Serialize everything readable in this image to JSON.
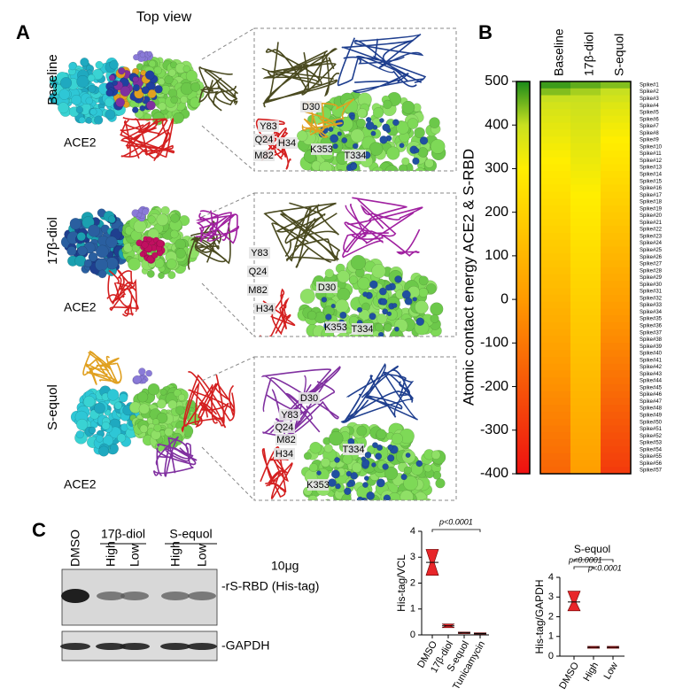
{
  "panel_labels": {
    "a": "A",
    "b": "B",
    "c": "C"
  },
  "panel_a": {
    "title": "Top view",
    "rows": [
      {
        "name": "Baseline",
        "color": "#000000",
        "ace2": "ACE2",
        "residues": [
          "Y83",
          "Q24",
          "D30",
          "M82",
          "H34",
          "K353",
          "T334"
        ]
      },
      {
        "name": "17β-diol",
        "color": "#c000c0",
        "ace2": "ACE2",
        "residues": [
          "Y83",
          "Q24",
          "D30",
          "M82",
          "H34",
          "K353",
          "T334"
        ]
      },
      {
        "name": "S-equol",
        "color": "#d9822b",
        "ace2": "ACE2",
        "residues": [
          "Y83",
          "Q24",
          "D30",
          "M82",
          "H34",
          "K353",
          "T334"
        ]
      }
    ]
  },
  "panel_c_blot": {
    "lanes": [
      "DMSO",
      "High",
      "Low",
      "High",
      "Low"
    ],
    "groups": [
      {
        "name": "17β-diol"
      },
      {
        "name": "S-equol"
      }
    ],
    "amount": "10μg",
    "bands": [
      "-rS-RBD (His-tag)",
      "-GAPDH"
    ]
  },
  "chart_data": [
    {
      "type": "heatmap",
      "ylabel": "Atomic contact energy ACE2 & S-RBD",
      "columns": [
        "Baseline",
        "17β-diol",
        "S-equol"
      ],
      "column_colors": [
        "#000000",
        "#c000c0",
        "#d9822b"
      ],
      "rows": [
        "Spike#1",
        "Spike#2",
        "Spike#3",
        "Spike#4",
        "Spike#5",
        "Spike#6",
        "Spike#7",
        "Spike#8",
        "Spike#9",
        "Spike#10",
        "Spike#11",
        "Spike#12",
        "Spike#13",
        "Spike#14",
        "Spike#15",
        "Spike#16",
        "Spike#17",
        "Spike#18",
        "Spike#19",
        "Spike#20",
        "Spike#21",
        "Spike#22",
        "Spike#23",
        "Spike#24",
        "Spike#25",
        "Spike#26",
        "Spike#27",
        "Spike#28",
        "Spike#29",
        "Spike#30",
        "Spike#31",
        "Spike#32",
        "Spike#33",
        "Spike#34",
        "Spike#35",
        "Spike#36",
        "Spike#37",
        "Spike#38",
        "Spike#39",
        "Spike#40",
        "Spike#41",
        "Spike#42",
        "Spike#43",
        "Spike#44",
        "Spike#45",
        "Spike#46",
        "Spike#47",
        "Spike#48",
        "Spike#49",
        "Spike#50",
        "Spike#51",
        "Spike#52",
        "Spike#53",
        "Spike#54",
        "Spike#55",
        "Spike#56",
        "Spike#57"
      ],
      "values": [
        [
          480,
          440,
          400,
          380,
          370,
          360,
          350,
          340,
          330,
          320,
          310,
          300,
          290,
          280,
          270,
          260,
          250,
          240,
          230,
          220,
          210,
          200,
          190,
          180,
          170,
          160,
          150,
          140,
          130,
          120,
          110,
          100,
          90,
          80,
          70,
          60,
          50,
          40,
          30,
          20,
          10,
          0,
          -10,
          -20,
          -30,
          -40,
          -50,
          -60,
          -70,
          -80,
          -90,
          -100,
          -110,
          -120,
          -130,
          -140,
          -150
        ],
        [
          460,
          420,
          400,
          390,
          383,
          376,
          369,
          362,
          355,
          348,
          341,
          334,
          327,
          320,
          313,
          306,
          299,
          292,
          285,
          278,
          271,
          264,
          257,
          250,
          243,
          236,
          229,
          222,
          215,
          208,
          201,
          194,
          187,
          180,
          173,
          166,
          159,
          152,
          145,
          138,
          131,
          124,
          117,
          110,
          103,
          96,
          89,
          82,
          75,
          68,
          61,
          54,
          47,
          40,
          33,
          26,
          19
        ],
        [
          440,
          400,
          380,
          360,
          348,
          336,
          324,
          312,
          300,
          288,
          276,
          264,
          252,
          240,
          228,
          216,
          204,
          192,
          180,
          168,
          156,
          144,
          132,
          120,
          108,
          96,
          84,
          72,
          60,
          48,
          36,
          24,
          12,
          0,
          -12,
          -24,
          -36,
          -48,
          -60,
          -72,
          -84,
          -96,
          -108,
          -120,
          -132,
          -144,
          -156,
          -168,
          -180,
          -192,
          -204,
          -216,
          -228,
          -240,
          -252,
          -264,
          -276
        ]
      ],
      "zlim": [
        -400,
        500
      ],
      "colorbar_ticks": [
        500,
        400,
        300,
        200,
        100,
        0,
        -100,
        -200,
        -300,
        -400
      ],
      "colorscale": [
        [
          -400,
          "#ee1111"
        ],
        [
          0,
          "#ff9a00"
        ],
        [
          300,
          "#ffee00"
        ],
        [
          400,
          "#c8e020"
        ],
        [
          500,
          "#1a8a1a"
        ]
      ]
    },
    {
      "type": "box",
      "ylabel": "His-tag/VCL",
      "categories": [
        "DMSO",
        "17β-diol",
        "S-equol",
        "Tunicamycin"
      ],
      "low": [
        2.3,
        0.28,
        0.05,
        0.03
      ],
      "median": [
        2.8,
        0.35,
        0.08,
        0.05
      ],
      "high": [
        3.3,
        0.42,
        0.11,
        0.08
      ],
      "color": "#e8262a",
      "ylim": [
        0,
        4
      ],
      "yticks": [
        0,
        1,
        2,
        3,
        4
      ],
      "annotations": [
        "p<0.0001"
      ]
    },
    {
      "type": "box",
      "title": "S-equol",
      "ylabel": "His-tag/GAPDH",
      "categories": [
        "DMSO",
        "High",
        "Low"
      ],
      "low": [
        2.3,
        0.4,
        0.4
      ],
      "median": [
        2.75,
        0.45,
        0.45
      ],
      "high": [
        3.3,
        0.5,
        0.5
      ],
      "color": "#e8262a",
      "ylim": [
        0,
        4
      ],
      "yticks": [
        0,
        1,
        2,
        3,
        4
      ],
      "annotations": [
        "p<0.0001",
        "p<0.0001"
      ]
    }
  ]
}
